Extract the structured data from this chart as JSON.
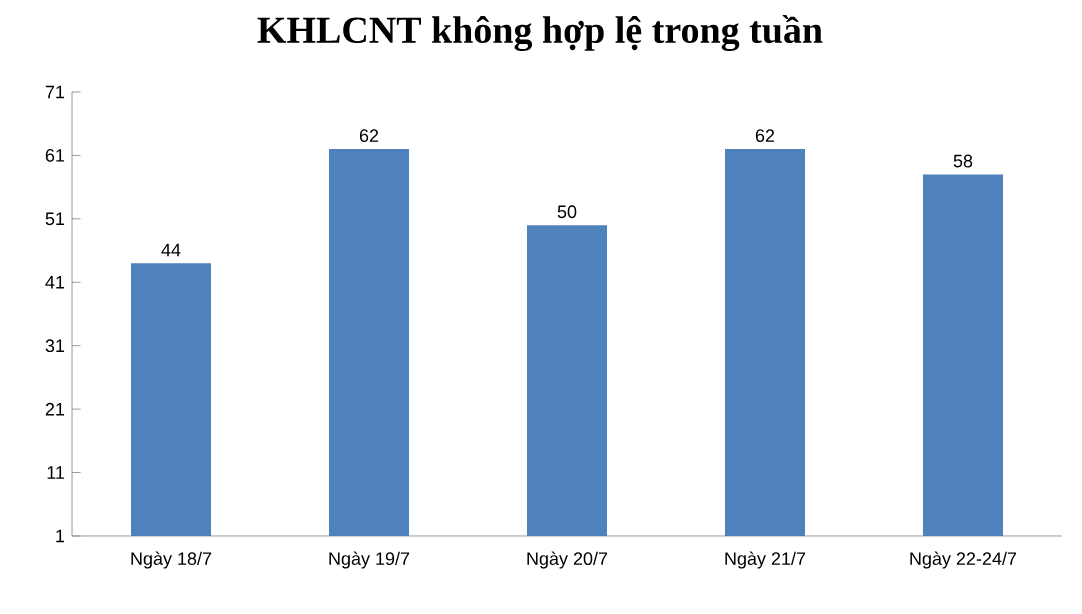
{
  "chart_data": {
    "type": "bar",
    "title": "KHLCNT không hợp lệ trong tuần",
    "categories": [
      "Ngày 18/7",
      "Ngày 19/7",
      "Ngày 20/7",
      "Ngày 21/7",
      "Ngày 22-24/7"
    ],
    "values": [
      44,
      62,
      50,
      62,
      58
    ],
    "color": "#4f81bd",
    "ylim": [
      1,
      71
    ],
    "yticks": [
      1,
      11,
      21,
      31,
      41,
      51,
      61,
      71
    ],
    "data_labels": true
  }
}
